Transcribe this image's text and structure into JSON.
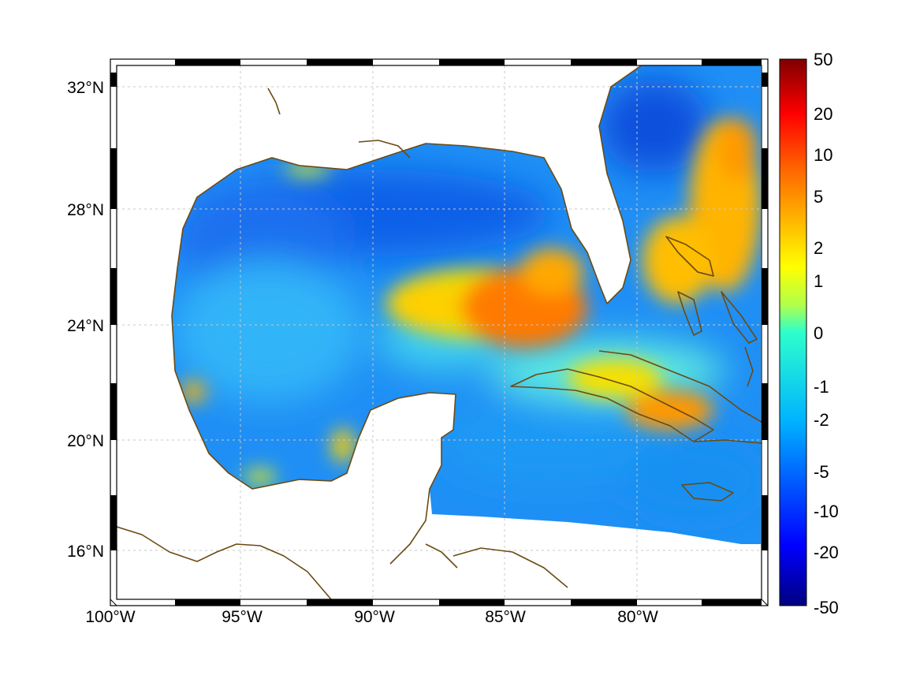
{
  "map": {
    "lon_labels": [
      "100°W",
      "95°W",
      "90°W",
      "85°W",
      "80°W"
    ],
    "lon_values": [
      -100,
      -95,
      -90,
      -85,
      -80
    ],
    "lat_labels": [
      "32°N",
      "28°N",
      "24°N",
      "20°N",
      "16°N"
    ],
    "lat_values": [
      32,
      28,
      24,
      20,
      16
    ],
    "extent": {
      "lon_min": -100,
      "lon_max": -75,
      "lat_min": 14.7,
      "lat_max": 32.9
    },
    "coastline_color": "#6b4a12",
    "colormap": "jet"
  },
  "colorbar": {
    "tick_labels": [
      "50",
      "20",
      "10",
      "5",
      "2",
      "1",
      "0",
      "-1",
      "-2",
      "-5",
      "-10",
      "-20",
      "-50"
    ],
    "range": [
      -50,
      50
    ]
  }
}
